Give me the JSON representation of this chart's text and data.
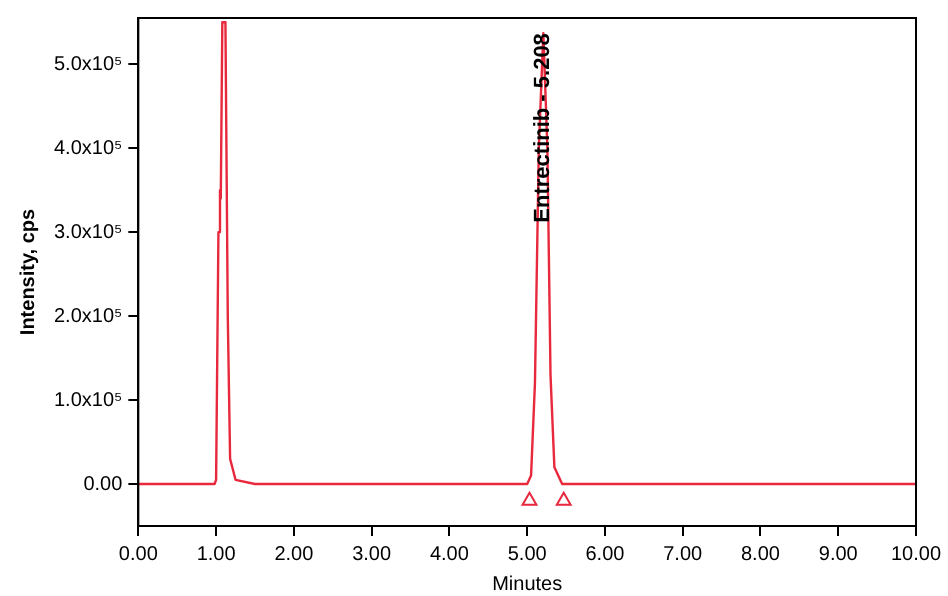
{
  "chart_data": {
    "type": "line",
    "xlabel": "Minutes",
    "ylabel": "Intensity, cps",
    "x": [
      0,
      0.98,
      1.0,
      1.03,
      1.05,
      1.06,
      1.08,
      1.12,
      1.15,
      1.18,
      1.25,
      1.5,
      3.0,
      5.0,
      5.05,
      5.1,
      5.15,
      5.208,
      5.26,
      5.3,
      5.35,
      5.45,
      7.0,
      10.0
    ],
    "series": [
      {
        "color": "#e8283c",
        "values": [
          0,
          0,
          5000,
          300000,
          350000,
          340000,
          550000,
          550000,
          200000,
          30000,
          5000,
          0,
          0,
          0,
          10000,
          120000,
          400000,
          537000,
          400000,
          130000,
          20000,
          0,
          0,
          0
        ]
      },
      {
        "type": "scatter",
        "color": "#e8283c",
        "marker": "triangle",
        "x": [
          5.03,
          5.47
        ],
        "values": [
          -20000,
          -20000
        ]
      }
    ],
    "xlim": [
      0,
      10
    ],
    "xticks": [
      {
        "value": 0,
        "label": "0.00"
      },
      {
        "value": 1,
        "label": "1.00"
      },
      {
        "value": 2,
        "label": "2.00"
      },
      {
        "value": 3,
        "label": "3.00"
      },
      {
        "value": 4,
        "label": "4.00"
      },
      {
        "value": 5,
        "label": "5.00"
      },
      {
        "value": 6,
        "label": "6.00"
      },
      {
        "value": 7,
        "label": "7.00"
      },
      {
        "value": 8,
        "label": "8.00"
      },
      {
        "value": 9,
        "label": "9.00"
      },
      {
        "value": 10,
        "label": "10.00"
      }
    ],
    "ylim": [
      -50000,
      555000
    ],
    "yticks": [
      {
        "value": 0,
        "label": "0.00"
      },
      {
        "value": 100000,
        "label": "1.0x10⁵"
      },
      {
        "value": 200000,
        "label": "2.0x10⁵"
      },
      {
        "value": 300000,
        "label": "3.0x10⁵"
      },
      {
        "value": 400000,
        "label": "4.0x10⁵"
      },
      {
        "value": 500000,
        "label": "5.0x10⁵"
      }
    ],
    "annotations": [
      {
        "text": "Entrectinib - 5.208",
        "x": 5.208,
        "y": 537000
      }
    ],
    "grid": false,
    "legend": false,
    "marker": "none",
    "line_style": "solid"
  }
}
